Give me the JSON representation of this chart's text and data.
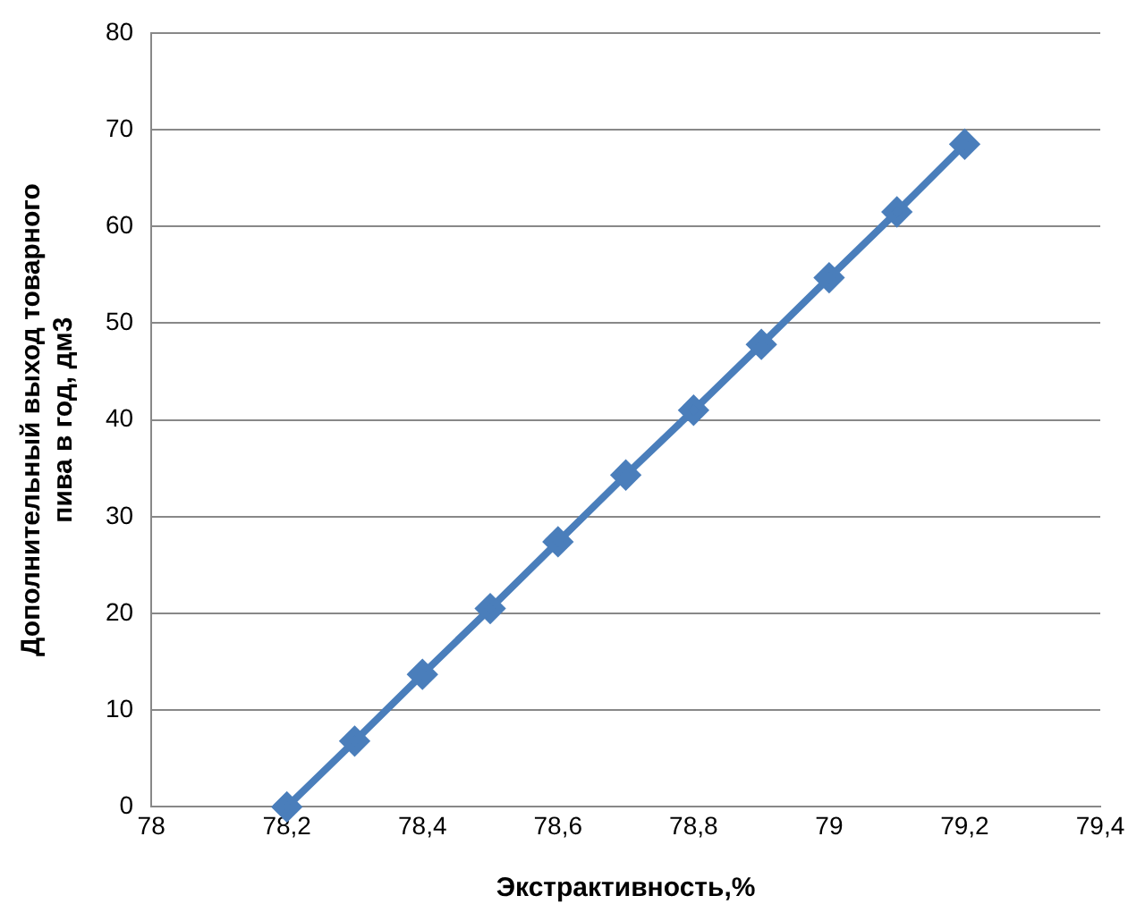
{
  "chart_data": {
    "type": "line",
    "xlabel": "Экстрактивность,%",
    "ylabel": "Дополнительный выход товарного пива в год, дм3",
    "x": [
      78.2,
      78.3,
      78.4,
      78.5,
      78.6,
      78.7,
      78.8,
      78.9,
      79,
      79.1,
      79.2
    ],
    "series": [
      {
        "color": "#4a7ebb",
        "values": [
          0,
          6.8,
          13.7,
          20.5,
          27.4,
          34.3,
          41,
          47.8,
          54.7,
          61.5,
          68.5
        ]
      }
    ],
    "xlim": [
      78,
      79.4
    ],
    "xticks": [
      78,
      {
        "value": 78.2,
        "label": "78,2"
      },
      {
        "value": 78.4,
        "label": "78,4"
      },
      {
        "value": 78.6,
        "label": "78,6"
      },
      {
        "value": 78.8,
        "label": "78,8"
      },
      79,
      {
        "value": 79.2,
        "label": "79,2"
      },
      {
        "value": 79.4,
        "label": "79,4"
      }
    ],
    "ylim": [
      0,
      80
    ],
    "yticks": [
      0,
      10,
      20,
      30,
      40,
      50,
      60,
      70,
      80
    ],
    "grid": "y",
    "legend": false,
    "marker": "diamond",
    "line_style": "solid"
  }
}
